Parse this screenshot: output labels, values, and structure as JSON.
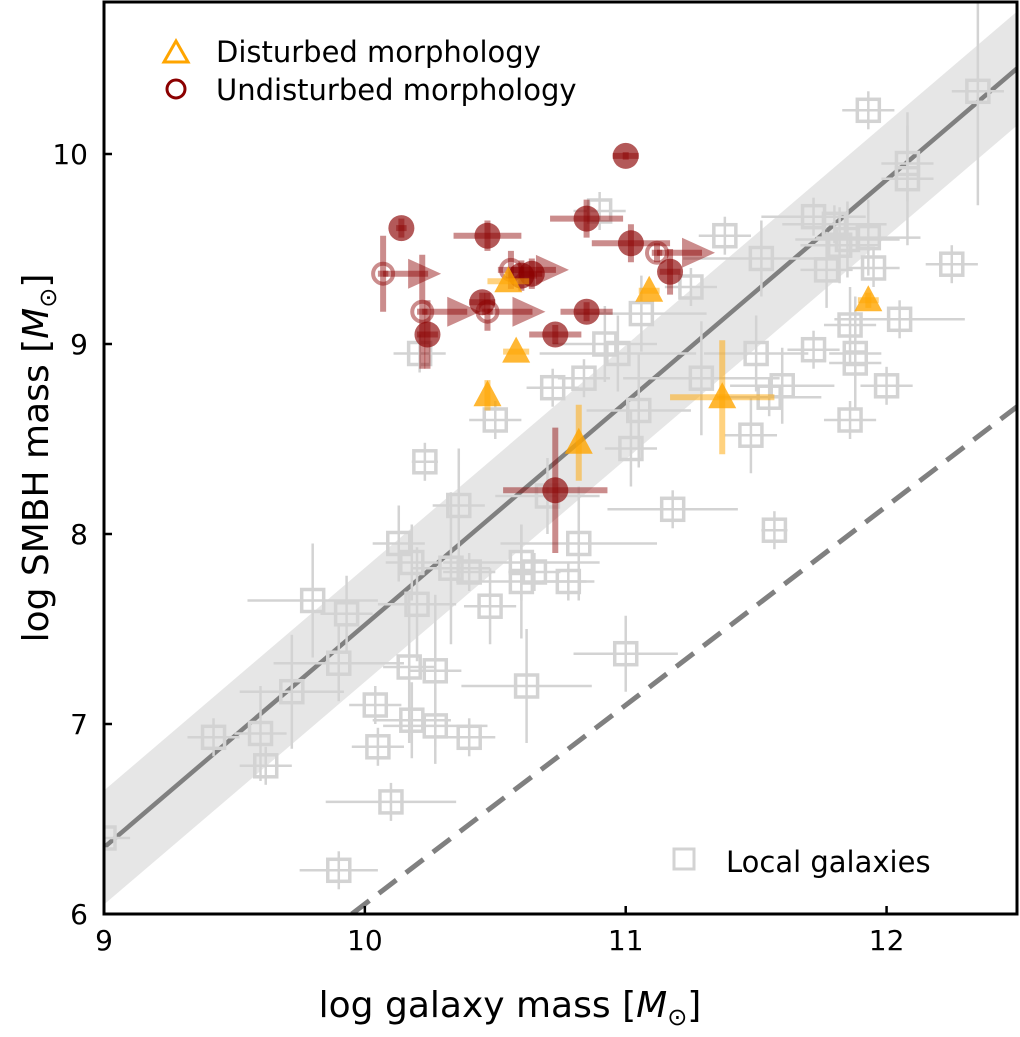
{
  "chart_data": {
    "type": "scatter",
    "title": "",
    "xlabel": "log galaxy mass [M☉]",
    "ylabel": "log SMBH mass [M☉]",
    "xlabel_parts": {
      "prefix": "log galaxy mass [",
      "symbol": "M",
      "sub": "⊙",
      "suffix": "]"
    },
    "ylabel_parts": {
      "prefix": "log SMBH mass [",
      "symbol": "M",
      "sub": "⊙",
      "suffix": "]"
    },
    "xlim": [
      9,
      12.5
    ],
    "ylim": [
      6,
      10.8
    ],
    "xticks": [
      9,
      10,
      11,
      12
    ],
    "yticks": [
      6,
      7,
      8,
      9,
      10
    ],
    "xtick_labels": [
      "9",
      "10",
      "11",
      "12"
    ],
    "ytick_labels": [
      "6",
      "7",
      "8",
      "9",
      "10"
    ],
    "grid": false,
    "colors": {
      "disturbed": "#FFA500",
      "undisturbed": "#8B0000",
      "local": "#D3D3D3",
      "relation_line": "#808080",
      "relation_band": "#E6E6E6"
    },
    "legend_top_left": {
      "position": "top-left",
      "entries": [
        {
          "label": "Disturbed morphology",
          "marker": "open-triangle",
          "color": "#FFA500"
        },
        {
          "label": "Undisturbed morphology",
          "marker": "open-circle",
          "color": "#8B0000"
        }
      ]
    },
    "legend_bottom_right": {
      "position": "bottom-right",
      "entries": [
        {
          "label": "Local galaxies",
          "marker": "open-square",
          "color": "#D3D3D3"
        }
      ]
    },
    "relations": [
      {
        "name": "local relation (solid)",
        "style": "solid",
        "x": [
          9,
          12.5
        ],
        "y": [
          6.35,
          10.45
        ],
        "band": 0.3
      },
      {
        "name": "offset relation (dashed)",
        "style": "dashed",
        "x": [
          9.95,
          12.5
        ],
        "y": [
          6.0,
          8.67
        ]
      }
    ],
    "series": [
      {
        "name": "Local galaxies",
        "marker": "square-open",
        "points": [
          {
            "x": 9.0,
            "y": 6.4,
            "xe": 0.1,
            "ye": 0.2
          },
          {
            "x": 9.42,
            "y": 6.93,
            "xe": 0.1,
            "ye": 0.1
          },
          {
            "x": 9.6,
            "y": 6.95,
            "xe": 0.1,
            "ye": 0.25
          },
          {
            "x": 9.62,
            "y": 6.78,
            "xe": 0.1,
            "ye": 0.1
          },
          {
            "x": 9.72,
            "y": 7.17,
            "xe": 0.2,
            "ye": 0.3
          },
          {
            "x": 9.8,
            "y": 7.65,
            "xe": 0.25,
            "ye": 0.3
          },
          {
            "x": 9.9,
            "y": 7.32,
            "xe": 0.25,
            "ye": 0.2
          },
          {
            "x": 9.9,
            "y": 6.23,
            "xe": 0.15,
            "ye": 0.1
          },
          {
            "x": 9.93,
            "y": 7.58,
            "xe": 0.1,
            "ye": 0.2
          },
          {
            "x": 10.04,
            "y": 7.1,
            "xe": 0.1,
            "ye": 0.1
          },
          {
            "x": 10.05,
            "y": 6.88,
            "xe": 0.1,
            "ye": 0.1
          },
          {
            "x": 10.1,
            "y": 6.59,
            "xe": 0.25,
            "ye": 0.1
          },
          {
            "x": 10.13,
            "y": 7.95,
            "xe": 0.1,
            "ye": 0.2
          },
          {
            "x": 10.17,
            "y": 7.3,
            "xe": 0.1,
            "ye": 0.4
          },
          {
            "x": 10.18,
            "y": 7.02,
            "xe": 0.15,
            "ye": 0.2
          },
          {
            "x": 10.18,
            "y": 7.85,
            "xe": 0.1,
            "ye": 0.2
          },
          {
            "x": 10.2,
            "y": 7.63,
            "xe": 0.15,
            "ye": 0.3
          },
          {
            "x": 10.23,
            "y": 8.38,
            "xe": 0.05,
            "ye": 0.1
          },
          {
            "x": 10.21,
            "y": 8.95,
            "xe": 0.1,
            "ye": 0.1
          },
          {
            "x": 10.27,
            "y": 7.28,
            "xe": 0.1,
            "ye": 0.4
          },
          {
            "x": 10.27,
            "y": 6.99,
            "xe": 0.2,
            "ye": 0.2
          },
          {
            "x": 10.33,
            "y": 7.82,
            "xe": 0.15,
            "ye": 0.4
          },
          {
            "x": 10.36,
            "y": 8.15,
            "xe": 0.1,
            "ye": 0.3
          },
          {
            "x": 10.4,
            "y": 7.8,
            "xe": 0.1,
            "ye": 0.1
          },
          {
            "x": 10.4,
            "y": 6.93,
            "xe": 0.1,
            "ye": 0.1
          },
          {
            "x": 10.48,
            "y": 7.62,
            "xe": 0.1,
            "ye": 0.2
          },
          {
            "x": 10.5,
            "y": 8.6,
            "xe": 0.1,
            "ye": 0.1
          },
          {
            "x": 10.6,
            "y": 7.85,
            "xe": 0.3,
            "ye": 0.2
          },
          {
            "x": 10.6,
            "y": 7.75,
            "xe": 0.25,
            "ye": 0.3
          },
          {
            "x": 10.62,
            "y": 7.2,
            "xe": 0.25,
            "ye": 0.3
          },
          {
            "x": 10.65,
            "y": 7.8,
            "xe": 0.1,
            "ye": 0.1
          },
          {
            "x": 10.7,
            "y": 8.2,
            "xe": 0.2,
            "ye": 0.2
          },
          {
            "x": 10.72,
            "y": 8.77,
            "xe": 0.1,
            "ye": 0.1
          },
          {
            "x": 10.78,
            "y": 7.75,
            "xe": 0.1,
            "ye": 0.1
          },
          {
            "x": 10.82,
            "y": 7.95,
            "xe": 0.3,
            "ye": 0.3
          },
          {
            "x": 10.84,
            "y": 8.82,
            "xe": 0.1,
            "ye": 0.1
          },
          {
            "x": 10.92,
            "y": 9.0,
            "xe": 0.2,
            "ye": 0.2
          },
          {
            "x": 10.9,
            "y": 9.7,
            "xe": 0.1,
            "ye": 0.1
          },
          {
            "x": 10.97,
            "y": 8.95,
            "xe": 0.3,
            "ye": 0.2
          },
          {
            "x": 11.0,
            "y": 7.37,
            "xe": 0.2,
            "ye": 0.2
          },
          {
            "x": 11.02,
            "y": 8.45,
            "xe": 0.1,
            "ye": 0.2
          },
          {
            "x": 11.05,
            "y": 8.65,
            "xe": 0.2,
            "ye": 0.3
          },
          {
            "x": 11.06,
            "y": 9.16,
            "xe": 0.25,
            "ye": 0.2
          },
          {
            "x": 11.18,
            "y": 8.13,
            "xe": 0.25,
            "ye": 0.1
          },
          {
            "x": 11.25,
            "y": 9.3,
            "xe": 0.1,
            "ye": 0.1
          },
          {
            "x": 11.29,
            "y": 8.82,
            "xe": 0.3,
            "ye": 0.3
          },
          {
            "x": 11.38,
            "y": 9.57,
            "xe": 0.1,
            "ye": 0.1
          },
          {
            "x": 11.48,
            "y": 8.52,
            "xe": 0.1,
            "ye": 0.2
          },
          {
            "x": 11.5,
            "y": 8.95,
            "xe": 0.2,
            "ye": 0.2
          },
          {
            "x": 11.52,
            "y": 9.45,
            "xe": 0.3,
            "ye": 0.2
          },
          {
            "x": 11.55,
            "y": 8.72,
            "xe": 0.2,
            "ye": 0.1
          },
          {
            "x": 11.57,
            "y": 8.02,
            "xe": 0.05,
            "ye": 0.1
          },
          {
            "x": 11.6,
            "y": 8.78,
            "xe": 0.2,
            "ye": 0.2
          },
          {
            "x": 11.72,
            "y": 8.97,
            "xe": 0.1,
            "ye": 0.1
          },
          {
            "x": 11.72,
            "y": 9.67,
            "xe": 0.2,
            "ye": 0.1
          },
          {
            "x": 11.77,
            "y": 9.39,
            "xe": 0.1,
            "ye": 0.2
          },
          {
            "x": 11.8,
            "y": 9.63,
            "xe": 0.2,
            "ye": 0.1
          },
          {
            "x": 11.82,
            "y": 9.52,
            "xe": 0.15,
            "ye": 0.2
          },
          {
            "x": 11.85,
            "y": 9.55,
            "xe": 0.2,
            "ye": 0.2
          },
          {
            "x": 11.86,
            "y": 9.1,
            "xe": 0.1,
            "ye": 0.2
          },
          {
            "x": 11.86,
            "y": 8.6,
            "xe": 0.1,
            "ye": 0.1
          },
          {
            "x": 11.88,
            "y": 8.95,
            "xe": 0.1,
            "ye": 0.3
          },
          {
            "x": 11.88,
            "y": 8.9,
            "xe": 0.1,
            "ye": 0.2
          },
          {
            "x": 11.93,
            "y": 9.56,
            "xe": 0.2,
            "ye": 0.2
          },
          {
            "x": 11.95,
            "y": 9.4,
            "xe": 0.1,
            "ye": 0.1
          },
          {
            "x": 11.93,
            "y": 10.23,
            "xe": 0.1,
            "ye": 0.1
          },
          {
            "x": 12.0,
            "y": 8.78,
            "xe": 0.1,
            "ye": 0.1
          },
          {
            "x": 12.05,
            "y": 9.13,
            "xe": 0.25,
            "ye": 0.1
          },
          {
            "x": 12.08,
            "y": 9.87,
            "xe": 0.1,
            "ye": 0.35
          },
          {
            "x": 12.08,
            "y": 9.95,
            "xe": 0.1,
            "ye": 0.2
          },
          {
            "x": 12.25,
            "y": 9.42,
            "xe": 0.1,
            "ye": 0.1
          },
          {
            "x": 12.35,
            "y": 10.33,
            "xe": 0.1,
            "ye": 0.6
          }
        ]
      },
      {
        "name": "Undisturbed morphology",
        "marker": "circle",
        "points": [
          {
            "x": 11.0,
            "y": 9.99,
            "xe": 0.05,
            "ye": 0.02,
            "filled": true
          },
          {
            "x": 10.14,
            "y": 9.61,
            "xe": 0.02,
            "ye": 0.05,
            "filled": true
          },
          {
            "x": 10.47,
            "y": 9.57,
            "xe": 0.13,
            "ye": 0.08,
            "filled": true
          },
          {
            "x": 10.85,
            "y": 9.66,
            "xe": 0.14,
            "ye": 0.1,
            "filled": true
          },
          {
            "x": 11.02,
            "y": 9.53,
            "xe": 0.15,
            "ye": 0.1,
            "filled": true
          },
          {
            "x": 11.17,
            "y": 9.38,
            "xe": 0.04,
            "ye": 0.12,
            "filled": true
          },
          {
            "x": 10.6,
            "y": 9.36,
            "xe": 0.06,
            "ye": 0.08,
            "filled": true
          },
          {
            "x": 10.64,
            "y": 9.37,
            "xe": 0.04,
            "ye": 0.08,
            "filled": true
          },
          {
            "x": 10.45,
            "y": 9.22,
            "xe": 0.05,
            "ye": 0.05,
            "filled": true
          },
          {
            "x": 10.85,
            "y": 9.17,
            "xe": 0.1,
            "ye": 0.05,
            "filled": true
          },
          {
            "x": 10.73,
            "y": 9.05,
            "xe": 0.1,
            "ye": 0.05,
            "filled": true
          },
          {
            "x": 10.24,
            "y": 9.05,
            "xe": 0.04,
            "ye": 0.18,
            "filled": true
          },
          {
            "x": 10.73,
            "y": 8.23,
            "xe": 0.2,
            "ye": 0.33,
            "filled": true
          },
          {
            "x": 10.07,
            "y": 9.37,
            "xe": 0.02,
            "ye": 0.2,
            "filled": false,
            "lower_limit_x": true
          },
          {
            "x": 10.22,
            "y": 9.17,
            "xe": 0.02,
            "ye": 0.3,
            "filled": false,
            "lower_limit_x": true
          },
          {
            "x": 10.47,
            "y": 9.17,
            "xe": 0.02,
            "ye": 0.1,
            "filled": false,
            "lower_limit_x": true
          },
          {
            "x": 10.56,
            "y": 9.39,
            "xe": 0.05,
            "ye": 0.1,
            "filled": false,
            "lower_limit_x": true
          },
          {
            "x": 11.12,
            "y": 9.48,
            "xe": 0.02,
            "ye": 0.05,
            "filled": false,
            "lower_limit_x": true
          }
        ]
      },
      {
        "name": "Disturbed morphology",
        "marker": "triangle",
        "points": [
          {
            "x": 10.55,
            "y": 9.33,
            "xe": 0.08,
            "ye": 0.0
          },
          {
            "x": 11.09,
            "y": 9.28,
            "xe": 0.04,
            "ye": 0.0
          },
          {
            "x": 11.93,
            "y": 9.23,
            "xe": 0.04,
            "ye": 0.04
          },
          {
            "x": 10.58,
            "y": 8.96,
            "xe": 0.05,
            "ye": 0.0
          },
          {
            "x": 10.47,
            "y": 8.73,
            "xe": 0.0,
            "ye": 0.08
          },
          {
            "x": 11.37,
            "y": 8.72,
            "xe": 0.2,
            "ye": 0.3
          },
          {
            "x": 10.82,
            "y": 8.48,
            "xe": 0.0,
            "ye": 0.2
          }
        ]
      }
    ]
  }
}
